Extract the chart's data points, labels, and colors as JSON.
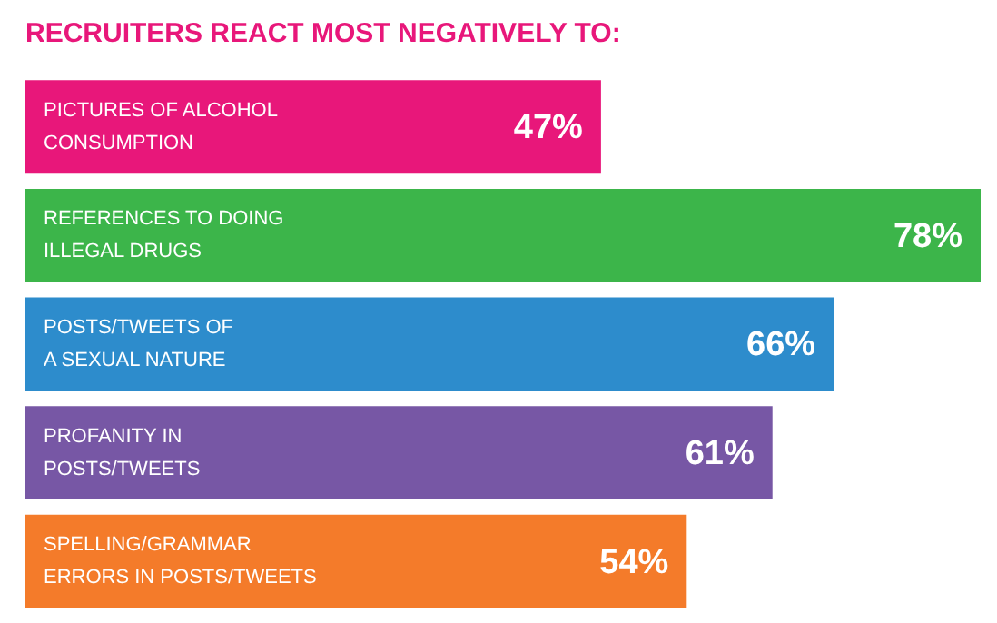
{
  "chart_data": {
    "type": "bar",
    "orientation": "horizontal",
    "title": "RECRUITERS REACT MOST NEGATIVELY TO:",
    "categories": [
      "PICTURES OF ALCOHOL\nCONSUMPTION",
      "REFERENCES TO DOING\nILLEGAL DRUGS",
      "POSTS/TWEETS OF\nA SEXUAL NATURE",
      "PROFANITY IN\nPOSTS/TWEETS",
      "SPELLING/GRAMMAR\nERRORS IN POSTS/TWEETS"
    ],
    "values": [
      47,
      78,
      66,
      61,
      54
    ],
    "colors": [
      "#e8177a",
      "#3cb54a",
      "#2d8ccc",
      "#7757a5",
      "#f47b2a"
    ],
    "value_labels": [
      "47%",
      "78%",
      "66%",
      "61%",
      "54%"
    ],
    "xlim": [
      0,
      78
    ],
    "tick_labels": false
  }
}
